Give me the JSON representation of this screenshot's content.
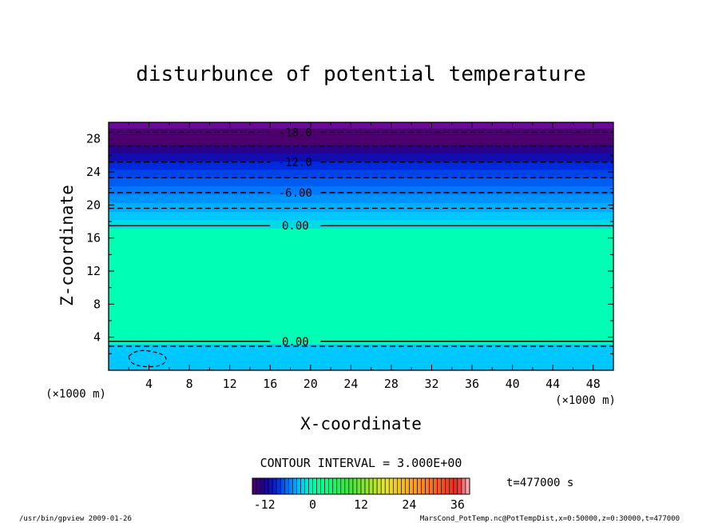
{
  "chart_data": {
    "type": "contour",
    "title": "disturbunce of potential temperature",
    "xlabel": "X-coordinate",
    "ylabel": "Z-coordinate",
    "x_unit_left": "(×1000 m)",
    "x_unit_right": "(×1000 m)",
    "xlim": [
      0,
      50
    ],
    "ylim": [
      0,
      30
    ],
    "x_ticks": [
      4,
      8,
      12,
      16,
      20,
      24,
      28,
      32,
      36,
      40,
      44,
      48
    ],
    "y_ticks": [
      4,
      8,
      12,
      16,
      20,
      24,
      28
    ],
    "contour_interval_text": "CONTOUR INTERVAL = 3.000E+00",
    "time_text": "t=477000 s",
    "colorbar": {
      "ticks": [
        -12,
        0,
        12,
        24,
        36
      ],
      "range": [
        -15,
        39
      ]
    },
    "bands": [
      {
        "z0": 0.0,
        "z1": 3.2,
        "value": -3
      },
      {
        "z0": 3.2,
        "z1": 17.2,
        "value": 0
      },
      {
        "z0": 17.2,
        "z1": 18.2,
        "value": -2
      },
      {
        "z0": 18.2,
        "z1": 19.2,
        "value": -3
      },
      {
        "z0": 19.2,
        "z1": 20.3,
        "value": -4
      },
      {
        "z0": 20.3,
        "z1": 21.3,
        "value": -5
      },
      {
        "z0": 21.3,
        "z1": 22.3,
        "value": -6
      },
      {
        "z0": 22.3,
        "z1": 23.3,
        "value": -7
      },
      {
        "z0": 23.3,
        "z1": 24.3,
        "value": -8
      },
      {
        "z0": 24.3,
        "z1": 25.3,
        "value": -9
      },
      {
        "z0": 25.3,
        "z1": 26.3,
        "value": -11
      },
      {
        "z0": 26.3,
        "z1": 27.3,
        "value": -13
      },
      {
        "z0": 27.3,
        "z1": 28.3,
        "value": -15
      },
      {
        "z0": 28.3,
        "z1": 29.3,
        "value": -17
      },
      {
        "z0": 29.3,
        "z1": 30.0,
        "value": -19
      }
    ],
    "contour_lines": [
      {
        "z": 28.8,
        "value": -18,
        "label": "-18.0",
        "style": "dashed"
      },
      {
        "z": 25.2,
        "value": -12,
        "label": "-12.0",
        "style": "dashed"
      },
      {
        "z": 21.5,
        "value": -6,
        "label": "-6.00",
        "style": "dashed"
      },
      {
        "z": 17.5,
        "value": 0,
        "label": "0.00",
        "style": "solid"
      },
      {
        "z": 3.5,
        "value": 0,
        "label": "0.00",
        "style": "solid"
      },
      {
        "z": 27.1,
        "value": -15,
        "label": "",
        "style": "dashed"
      },
      {
        "z": 23.3,
        "value": -9,
        "label": "",
        "style": "dashed"
      },
      {
        "z": 19.6,
        "value": -3,
        "label": "",
        "style": "dashed"
      },
      {
        "z": 2.9,
        "value": -3,
        "label": "",
        "style": "dashed"
      }
    ]
  },
  "footer": {
    "left": "/usr/bin/gpview   2009-01-26",
    "right": "MarsCond_PotTemp.nc@PotTempDist,x=0:50000,z=0:30000,t=477000"
  }
}
